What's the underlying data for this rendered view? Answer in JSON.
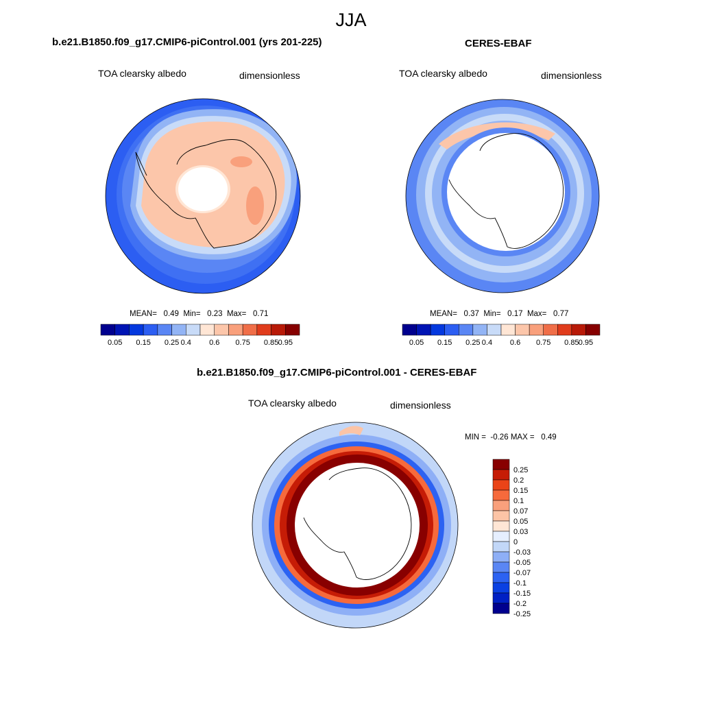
{
  "title": "JJA",
  "colors": {
    "abs_levels": [
      "#00008e",
      "#0014b4",
      "#0438de",
      "#2c5ef2",
      "#5a86f4",
      "#92b4f5",
      "#c8dbf8",
      "#ffe6d5",
      "#fcc6aa",
      "#f9a07c",
      "#f06e48",
      "#e03c1c",
      "#b81a08",
      "#860000"
    ],
    "diff_levels": [
      "#00008e",
      "#0020c4",
      "#0a40e2",
      "#2c62f2",
      "#5a86f4",
      "#8eaff6",
      "#c2d7f8",
      "#e6efff",
      "#ffe6d5",
      "#fcc4a6",
      "#f9a07c",
      "#f66a3c",
      "#ea4418",
      "#c61c06",
      "#880000"
    ]
  },
  "panels": [
    {
      "title": "b.e21.B1850.f09_g17.CMIP6-piControl.001 (yrs 201-225)",
      "variable": "TOA clearsky albedo",
      "units": "dimensionless",
      "stats": {
        "mean_label": "MEAN=",
        "mean": "0.49",
        "min_label": "Min=",
        "min": "0.23",
        "max_label": "Max=",
        "max": "0.71"
      },
      "colorbar_ticks": [
        "0.05",
        "0.15",
        "0.25",
        "0.4",
        "0.6",
        "0.75",
        "0.85",
        "0.95"
      ]
    },
    {
      "title": "CERES-EBAF",
      "variable": "TOA clearsky albedo",
      "units": "dimensionless",
      "stats": {
        "mean_label": "MEAN=",
        "mean": "0.37",
        "min_label": "Min=",
        "min": "0.17",
        "max_label": "Max=",
        "max": "0.77"
      },
      "colorbar_ticks": [
        "0.05",
        "0.15",
        "0.25",
        "0.4",
        "0.6",
        "0.75",
        "0.85",
        "0.95"
      ]
    },
    {
      "title": "b.e21.B1850.f09_g17.CMIP6-piControl.001 - CERES-EBAF",
      "variable": "TOA clearsky albedo",
      "units": "dimensionless",
      "stats": {
        "min_label": "MIN =",
        "min": "-0.26",
        "max_label": "MAX =",
        "max": "0.49"
      },
      "colorbar_ticks": [
        "0.25",
        "0.2",
        "0.15",
        "0.1",
        "0.07",
        "0.05",
        "0.03",
        "0",
        "-0.03",
        "-0.05",
        "-0.07",
        "-0.1",
        "-0.15",
        "-0.2",
        "-0.25"
      ]
    }
  ],
  "chart_data": [
    {
      "type": "heatmap",
      "projection": "south polar stereographic",
      "title": "b.e21.B1850.f09_g17.CMIP6-piControl.001 (yrs 201-225)",
      "variable": "TOA clearsky albedo",
      "units": "dimensionless",
      "mean": 0.49,
      "min": 0.23,
      "max": 0.71,
      "contour_levels": [
        0.05,
        0.1,
        0.15,
        0.2,
        0.25,
        0.3,
        0.4,
        0.5,
        0.6,
        0.7,
        0.75,
        0.8,
        0.85,
        0.9,
        0.95
      ],
      "colorbar_ticks": [
        0.05,
        0.15,
        0.25,
        0.4,
        0.6,
        0.75,
        0.85,
        0.95
      ]
    },
    {
      "type": "heatmap",
      "projection": "south polar stereographic",
      "title": "CERES-EBAF",
      "variable": "TOA clearsky albedo",
      "units": "dimensionless",
      "mean": 0.37,
      "min": 0.17,
      "max": 0.77,
      "contour_levels": [
        0.05,
        0.1,
        0.15,
        0.2,
        0.25,
        0.3,
        0.4,
        0.5,
        0.6,
        0.7,
        0.75,
        0.8,
        0.85,
        0.9,
        0.95
      ],
      "colorbar_ticks": [
        0.05,
        0.15,
        0.25,
        0.4,
        0.6,
        0.75,
        0.85,
        0.95
      ]
    },
    {
      "type": "heatmap",
      "projection": "south polar stereographic",
      "title": "b.e21.B1850.f09_g17.CMIP6-piControl.001 - CERES-EBAF",
      "variable": "TOA clearsky albedo",
      "units": "dimensionless",
      "min": -0.26,
      "max": 0.49,
      "contour_levels": [
        -0.25,
        -0.2,
        -0.15,
        -0.1,
        -0.07,
        -0.05,
        -0.03,
        0,
        0.03,
        0.05,
        0.07,
        0.1,
        0.15,
        0.2,
        0.25
      ],
      "colorbar_ticks": [
        0.25,
        0.2,
        0.15,
        0.1,
        0.07,
        0.05,
        0.03,
        0,
        -0.03,
        -0.05,
        -0.07,
        -0.1,
        -0.15,
        -0.2,
        -0.25
      ]
    }
  ]
}
